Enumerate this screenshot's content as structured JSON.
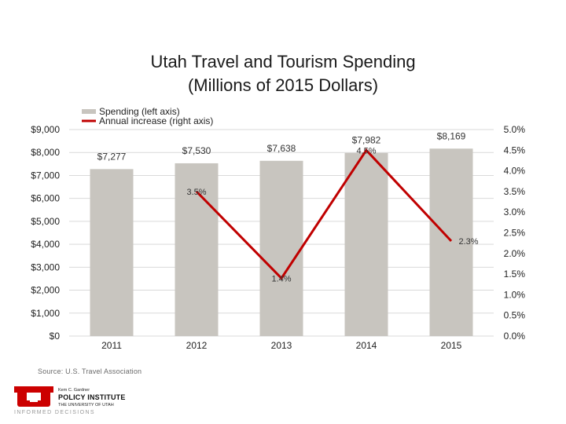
{
  "chart_data": {
    "type": "bar",
    "title_lines": [
      "Utah Travel and Tourism Spending",
      "(Millions of 2015 Dollars)"
    ],
    "categories": [
      "2011",
      "2012",
      "2013",
      "2014",
      "2015"
    ],
    "bar_series": {
      "name": "Spending (left axis)",
      "values": [
        7277,
        7530,
        7638,
        7982,
        8169
      ],
      "labels": [
        "$7,277",
        "$7,530",
        "$7,638",
        "$7,982",
        "$8,169"
      ],
      "color": "#c8c5bf"
    },
    "line_series": {
      "name": "Annual increase (right axis)",
      "values": [
        null,
        3.5,
        1.4,
        4.5,
        2.3
      ],
      "labels": [
        "",
        "3.5%",
        "1.4%",
        "4.5%",
        "2.3%"
      ],
      "color": "#c00000"
    },
    "y_left": {
      "min": 0,
      "max": 9000,
      "ticks": [
        0,
        1000,
        2000,
        3000,
        4000,
        5000,
        6000,
        7000,
        8000,
        9000
      ],
      "tick_labels": [
        "$0",
        "$1,000",
        "$2,000",
        "$3,000",
        "$4,000",
        "$5,000",
        "$6,000",
        "$7,000",
        "$8,000",
        "$9,000"
      ]
    },
    "y_right": {
      "min": 0,
      "max": 5,
      "ticks": [
        0,
        0.5,
        1,
        1.5,
        2,
        2.5,
        3,
        3.5,
        4,
        4.5,
        5
      ],
      "tick_labels": [
        "0.0%",
        "0.5%",
        "1.0%",
        "1.5%",
        "2.0%",
        "2.5%",
        "3.0%",
        "3.5%",
        "4.0%",
        "4.5%",
        "5.0%"
      ]
    },
    "grid": true,
    "legend_position": "top-left"
  },
  "source": "Source: U.S. Travel Association",
  "logo": {
    "line1": "Kem C. Gardner",
    "line2": "POLICY INSTITUTE",
    "line3": "THE UNIVERSITY OF UTAH",
    "line4": "INFORMED DECISIONS",
    "color": "#cc0000"
  }
}
